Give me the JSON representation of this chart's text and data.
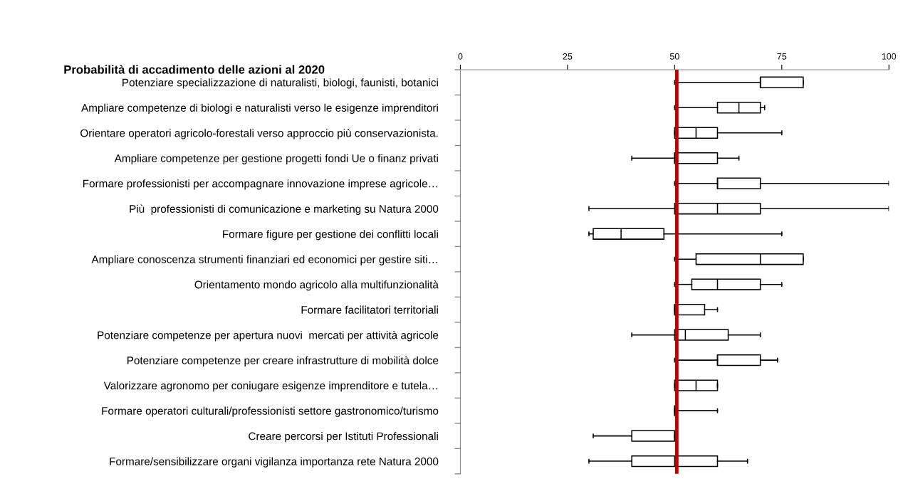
{
  "chart_data": {
    "type": "box",
    "orientation": "horizontal",
    "title": "Probabilità di accadimento delle azioni al 2020",
    "categories": [
      "Potenziare specializzazione di naturalisti, biologi, faunisti, botanici",
      "Ampliare competenze di biologi e naturalisti verso le esigenze imprenditori",
      "Orientare operatori agricolo-forestali verso approccio più conservazionista.",
      "Ampliare competenze per gestione progetti fondi Ue o finanz privati",
      "Formare professionisti per accompagnare innovazione imprese agricole…",
      "Più  professionisti di comunicazione e marketing su Natura 2000",
      "Formare figure per gestione dei conflitti locali",
      "Ampliare conoscenza strumenti finanziari ed economici per gestire siti…",
      "Orientamento mondo agricolo alla multifunzionalità",
      "Formare facilitatori territoriali",
      "Potenziare competenze per apertura nuovi  mercati per attività agricole",
      "Potenziare competenze per creare infrastrutture di mobilità dolce",
      "Valorizzare agronomo per coniugare esigenze imprenditore e tutela…",
      "Formare operatori culturali/professionisti settore gastronomico/turismo",
      "Creare percorsi per Istituti Professionali",
      "Formare/sensibilizzare organi vigilanza importanza rete Natura 2000"
    ],
    "boxes": [
      {
        "low": 50,
        "q1": 70,
        "median": 70,
        "q3": 80,
        "high": 80
      },
      {
        "low": 50,
        "q1": 60,
        "median": 65,
        "q3": 70,
        "high": 71
      },
      {
        "low": 50,
        "q1": 50,
        "median": 55,
        "q3": 60,
        "high": 75
      },
      {
        "low": 40,
        "q1": 50,
        "median": 50,
        "q3": 60,
        "high": 65
      },
      {
        "low": 50,
        "q1": 60,
        "median": 60,
        "q3": 70,
        "high": 100
      },
      {
        "low": 30,
        "q1": 50,
        "median": 60,
        "q3": 70,
        "high": 100
      },
      {
        "low": 30,
        "q1": 31,
        "median": 37.5,
        "q3": 47.5,
        "high": 75
      },
      {
        "low": 50,
        "q1": 55,
        "median": 70,
        "q3": 80,
        "high": 80
      },
      {
        "low": 50,
        "q1": 54,
        "median": 60,
        "q3": 70,
        "high": 75
      },
      {
        "low": 50,
        "q1": 50,
        "median": 50,
        "q3": 57,
        "high": 60
      },
      {
        "low": 40,
        "q1": 50,
        "median": 52.5,
        "q3": 62.5,
        "high": 70
      },
      {
        "low": 50,
        "q1": 60,
        "median": 60,
        "q3": 70,
        "high": 74
      },
      {
        "low": 50,
        "q1": 50,
        "median": 55,
        "q3": 60,
        "high": 60
      },
      {
        "low": 50,
        "q1": 50,
        "median": 50,
        "q3": 50,
        "high": 60
      },
      {
        "low": 31,
        "q1": 40,
        "median": 50,
        "q3": 50,
        "high": 50
      },
      {
        "low": 30,
        "q1": 40,
        "median": 50,
        "q3": 60,
        "high": 67
      }
    ],
    "xlim": [
      0,
      100
    ],
    "xticks": [
      0,
      25,
      50,
      75,
      100
    ],
    "ref_lines": [
      {
        "axis": "x",
        "value": 50.5,
        "color": "#c00000"
      }
    ],
    "grid": false,
    "legend": false
  }
}
